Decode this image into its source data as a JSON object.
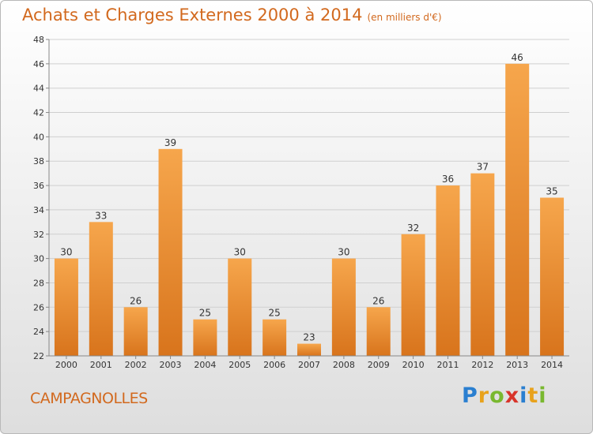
{
  "title": "Achats et Charges Externes 2000 à 2014",
  "unit_note": "(en milliers d'€)",
  "commune": "CAMPAGNOLLES",
  "brand": {
    "letters": [
      "P",
      "r",
      "o",
      "x",
      "i",
      "t",
      "i"
    ],
    "colors": [
      "#2a7fd0",
      "#e8a21c",
      "#79b82f",
      "#d8342a",
      "#2a7fd0",
      "#e8a21c",
      "#79b82f"
    ]
  },
  "colors": {
    "title": "#d2691e",
    "bar_light": "#f6a64c",
    "bar_dark": "#d8741c",
    "grid": "#cfcfcf"
  },
  "chart_data": {
    "type": "bar",
    "categories": [
      "2000",
      "2001",
      "2002",
      "2003",
      "2004",
      "2005",
      "2006",
      "2007",
      "2008",
      "2009",
      "2010",
      "2011",
      "2012",
      "2013",
      "2014"
    ],
    "values": [
      30,
      33,
      26,
      39,
      25,
      30,
      25,
      23,
      30,
      26,
      32,
      36,
      37,
      46,
      35
    ],
    "title": "Achats et Charges Externes 2000 à 2014",
    "ylim": [
      22,
      48
    ],
    "yticks": [
      22,
      24,
      26,
      28,
      30,
      32,
      34,
      36,
      38,
      40,
      42,
      44,
      46,
      48
    ],
    "grid": true,
    "data_labels": true
  }
}
